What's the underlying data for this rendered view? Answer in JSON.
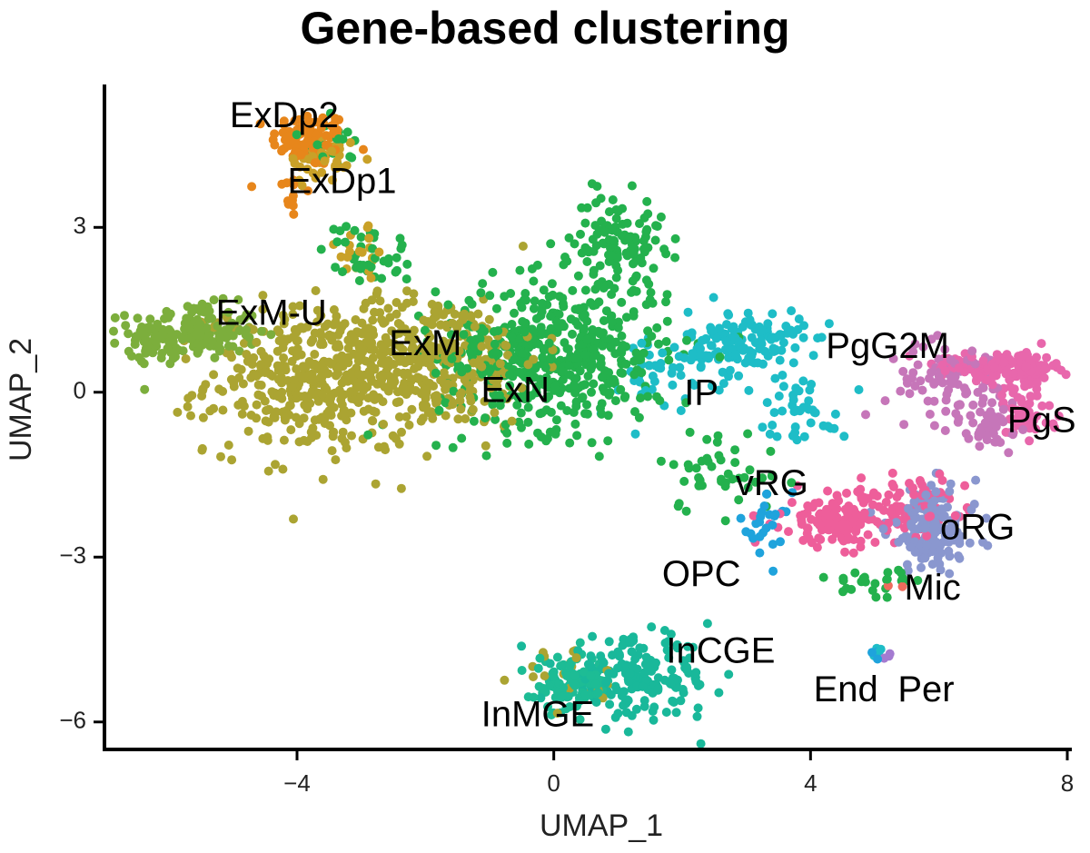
{
  "chart_data": {
    "type": "scatter",
    "title": "Gene-based clustering",
    "xlabel": "UMAP_1",
    "ylabel": "UMAP_2",
    "xlim": [
      -7,
      8
    ],
    "ylim": [
      -6.5,
      5.6
    ],
    "x_ticks": [
      -4,
      0,
      4,
      8
    ],
    "x_tick_labels": [
      "−4",
      "0",
      "4",
      "8"
    ],
    "y_ticks": [
      -6,
      -3,
      0,
      3
    ],
    "y_tick_labels": [
      "−6",
      "−3",
      "0",
      "3"
    ],
    "grid": false,
    "legend": "none",
    "clusters": [
      {
        "name": "ExDp2",
        "color": "#E7861B",
        "label_x": -4.2,
        "label_y": 5.0,
        "blobs": [
          {
            "cx": -3.8,
            "cy": 4.6,
            "sx": 0.3,
            "sy": 0.25,
            "n": 90
          },
          {
            "cx": -4.1,
            "cy": 3.6,
            "sx": 0.15,
            "sy": 0.3,
            "n": 12
          }
        ]
      },
      {
        "name": "ExDp1",
        "color": "#C9A128",
        "label_x": -3.3,
        "label_y": 3.8,
        "blobs": [
          {
            "cx": -3.6,
            "cy": 4.2,
            "sx": 0.3,
            "sy": 0.25,
            "n": 40
          },
          {
            "cx": -3.0,
            "cy": 2.6,
            "sx": 0.2,
            "sy": 0.3,
            "n": 20
          }
        ]
      },
      {
        "name": "ExM-U",
        "color": "#7CAE3C",
        "label_x": -4.4,
        "label_y": 1.4,
        "blobs": [
          {
            "cx": -5.6,
            "cy": 1.1,
            "sx": 0.5,
            "sy": 0.25,
            "n": 160
          },
          {
            "cx": -6.2,
            "cy": 0.8,
            "sx": 0.2,
            "sy": 0.12,
            "n": 25
          }
        ]
      },
      {
        "name": "ExM",
        "color": "#ABA432",
        "label_x": -2.0,
        "label_y": 0.85,
        "blobs": [
          {
            "cx": -3.6,
            "cy": 0.2,
            "sx": 0.9,
            "sy": 0.65,
            "n": 460
          },
          {
            "cx": -1.8,
            "cy": 0.6,
            "sx": 0.8,
            "sy": 0.6,
            "n": 280
          },
          {
            "cx": 0.3,
            "cy": -5.2,
            "sx": 0.4,
            "sy": 0.3,
            "n": 20
          }
        ]
      },
      {
        "name": "ExN",
        "color": "#24B14D",
        "label_x": -0.6,
        "label_y": 0.0,
        "blobs": [
          {
            "cx": 0.0,
            "cy": 0.7,
            "sx": 0.9,
            "sy": 0.7,
            "n": 520
          },
          {
            "cx": 1.0,
            "cy": 2.8,
            "sx": 0.35,
            "sy": 0.4,
            "n": 110
          },
          {
            "cx": -2.9,
            "cy": 2.5,
            "sx": 0.35,
            "sy": 0.3,
            "n": 40
          },
          {
            "cx": -3.5,
            "cy": 4.5,
            "sx": 0.25,
            "sy": 0.2,
            "n": 20
          },
          {
            "cx": 2.6,
            "cy": -1.4,
            "sx": 0.5,
            "sy": 0.4,
            "n": 45
          },
          {
            "cx": 5.0,
            "cy": -3.5,
            "sx": 0.4,
            "sy": 0.2,
            "n": 25
          }
        ]
      },
      {
        "name": "IP",
        "color": "#1EBDC7",
        "label_x": 2.3,
        "label_y": -0.05,
        "blobs": [
          {
            "cx": 3.0,
            "cy": 0.9,
            "sx": 0.45,
            "sy": 0.3,
            "n": 140
          },
          {
            "cx": 3.9,
            "cy": -0.3,
            "sx": 0.35,
            "sy": 0.3,
            "n": 40
          },
          {
            "cx": 1.6,
            "cy": 0.3,
            "sx": 0.5,
            "sy": 0.4,
            "n": 40
          }
        ]
      },
      {
        "name": "PgG2M",
        "color": "#C676B9",
        "label_x": 5.2,
        "label_y": 0.8,
        "blobs": [
          {
            "cx": 6.2,
            "cy": 0.2,
            "sx": 0.5,
            "sy": 0.35,
            "n": 90
          },
          {
            "cx": 6.8,
            "cy": -0.6,
            "sx": 0.3,
            "sy": 0.25,
            "n": 40
          }
        ]
      },
      {
        "name": "PgS",
        "color": "#E867AC",
        "label_x": 7.6,
        "label_y": -0.55,
        "blobs": [
          {
            "cx": 7.2,
            "cy": 0.45,
            "sx": 0.3,
            "sy": 0.15,
            "n": 110
          },
          {
            "cx": 7.3,
            "cy": -0.4,
            "sx": 0.25,
            "sy": 0.3,
            "n": 50
          },
          {
            "cx": 6.3,
            "cy": 0.5,
            "sx": 0.35,
            "sy": 0.1,
            "n": 40
          }
        ]
      },
      {
        "name": "vRG",
        "color": "#EE5E9A",
        "label_x": 3.4,
        "label_y": -1.7,
        "blobs": [
          {
            "cx": 4.5,
            "cy": -2.3,
            "sx": 0.45,
            "sy": 0.25,
            "n": 140
          },
          {
            "cx": 5.6,
            "cy": -2.0,
            "sx": 0.4,
            "sy": 0.25,
            "n": 60
          }
        ]
      },
      {
        "name": "oRG",
        "color": "#8A97CF",
        "label_x": 6.6,
        "label_y": -2.5,
        "blobs": [
          {
            "cx": 5.9,
            "cy": -2.5,
            "sx": 0.35,
            "sy": 0.4,
            "n": 150
          }
        ]
      },
      {
        "name": "OPC",
        "color": "#1FA3DC",
        "label_x": 2.3,
        "label_y": -3.35,
        "blobs": [
          {
            "cx": 3.3,
            "cy": -2.5,
            "sx": 0.2,
            "sy": 0.35,
            "n": 25
          },
          {
            "cx": 5.0,
            "cy": -4.7,
            "sx": 0.05,
            "sy": 0.05,
            "n": 3
          }
        ]
      },
      {
        "name": "Mic",
        "color": "#EF6B5C",
        "label_x": 5.9,
        "label_y": -3.6,
        "blobs": [
          {
            "cx": 5.3,
            "cy": -3.6,
            "sx": 0.06,
            "sy": 0.06,
            "n": 2
          }
        ]
      },
      {
        "name": "InCGE",
        "color": "#19B89A",
        "label_x": 2.6,
        "label_y": -4.75,
        "blobs": [
          {
            "cx": 1.3,
            "cy": -5.2,
            "sx": 0.6,
            "sy": 0.35,
            "n": 170
          }
        ]
      },
      {
        "name": "InMGE",
        "color": "#1DBC95",
        "label_x": -0.25,
        "label_y": -5.9,
        "blobs": [
          {
            "cx": 0.3,
            "cy": -5.3,
            "sx": 0.3,
            "sy": 0.25,
            "n": 90
          }
        ]
      },
      {
        "name": "End",
        "color": "#1EBDC7",
        "label_x": 4.55,
        "label_y": -5.45,
        "blobs": [
          {
            "cx": 5.05,
            "cy": -4.75,
            "sx": 0.05,
            "sy": 0.05,
            "n": 4
          }
        ]
      },
      {
        "name": "Per",
        "color": "#A47BD1",
        "label_x": 5.8,
        "label_y": -5.45,
        "blobs": [
          {
            "cx": 5.2,
            "cy": -4.85,
            "sx": 0.04,
            "sy": 0.05,
            "n": 4
          }
        ]
      }
    ]
  }
}
